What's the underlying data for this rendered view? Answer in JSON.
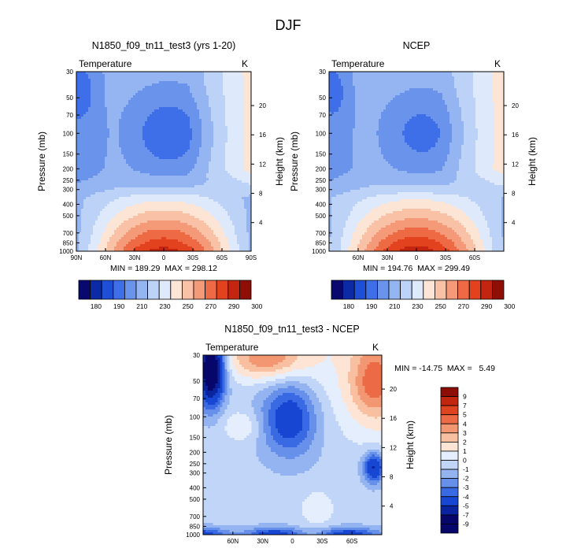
{
  "figure": {
    "title": "DJF"
  },
  "chart_data": [
    {
      "type": "heatmap",
      "title": "N1850_f09_tn11_test3 (yrs 1-20)",
      "left_label": "Temperature",
      "unit_label": "K",
      "ylabel": "Pressure (mb)",
      "y2label": "Height (km)",
      "x_ticks": [
        "90N",
        "60N",
        "30N",
        "0",
        "30S",
        "60S",
        "90S"
      ],
      "x_range": [
        90,
        -90
      ],
      "y_ticks": [
        "30",
        "50",
        "70",
        "100",
        "150",
        "200",
        "250",
        "300",
        "400",
        "500",
        "700",
        "850",
        "1000"
      ],
      "y_range_mb": [
        30,
        1000
      ],
      "y2_ticks": [
        "20",
        "16",
        "12",
        "8",
        "4"
      ],
      "stats": "MIN = 189.29  MAX = 298.12",
      "colorbar_labels": [
        "180",
        "190",
        "210",
        "230",
        "250",
        "270",
        "290",
        "300"
      ],
      "field": "model"
    },
    {
      "type": "heatmap",
      "title": "NCEP",
      "left_label": "Temperature",
      "unit_label": "K",
      "ylabel": "Pressure (mb)",
      "y2label": "Height (km)",
      "x_ticks": [
        "60N",
        "30N",
        "0",
        "30S",
        "60S"
      ],
      "x_range": [
        90,
        -90
      ],
      "y_ticks": [
        "30",
        "50",
        "70",
        "100",
        "150",
        "200",
        "250",
        "300",
        "400",
        "500",
        "700",
        "850",
        "1000"
      ],
      "y_range_mb": [
        30,
        1000
      ],
      "y2_ticks": [
        "20",
        "16",
        "12",
        "8",
        "4"
      ],
      "stats": "MIN = 194.76  MAX = 299.49",
      "colorbar_labels": [
        "180",
        "190",
        "210",
        "230",
        "250",
        "270",
        "290",
        "300"
      ],
      "field": "obs"
    },
    {
      "type": "heatmap",
      "title": "N1850_f09_tn11_test3 - NCEP",
      "left_label": "Temperature",
      "unit_label": "K",
      "ylabel": "Pressure (mb)",
      "y2label": "Height (km)",
      "x_ticks": [
        "60N",
        "30N",
        "0",
        "30S",
        "60S"
      ],
      "x_range": [
        90,
        -90
      ],
      "y_ticks": [
        "30",
        "50",
        "70",
        "100",
        "150",
        "200",
        "250",
        "300",
        "400",
        "500",
        "700",
        "850",
        "1000"
      ],
      "y_range_mb": [
        30,
        1000
      ],
      "y2_ticks": [
        "20",
        "16",
        "12",
        "8",
        "4"
      ],
      "stats": "MIN = -14.75  MAX =   5.49",
      "colorbar_labels": [
        "9",
        "7",
        "5",
        "4",
        "3",
        "2",
        "1",
        "0",
        "-1",
        "-2",
        "-3",
        "-4",
        "-5",
        "-7",
        "-9"
      ],
      "field": "diff"
    }
  ],
  "colors": {
    "abs_levels": [
      "#08086e",
      "#0d2aa6",
      "#1f4fd6",
      "#3f6fe8",
      "#6a93ec",
      "#94b4f2",
      "#bcd2f7",
      "#deeafb",
      "#fde5d6",
      "#f9c2a6",
      "#f59a78",
      "#ee6a45",
      "#e3421f",
      "#c42510",
      "#8f0f06"
    ],
    "diff_levels": [
      "#07076b",
      "#0a24a0",
      "#1646d2",
      "#3a69e4",
      "#6690ea",
      "#94b3f1",
      "#c0d5f7",
      "#e4eefc",
      "#fde4d4",
      "#f8c0a0",
      "#f39672",
      "#ec6a45",
      "#df4421",
      "#c2260f",
      "#8c0e05"
    ]
  }
}
